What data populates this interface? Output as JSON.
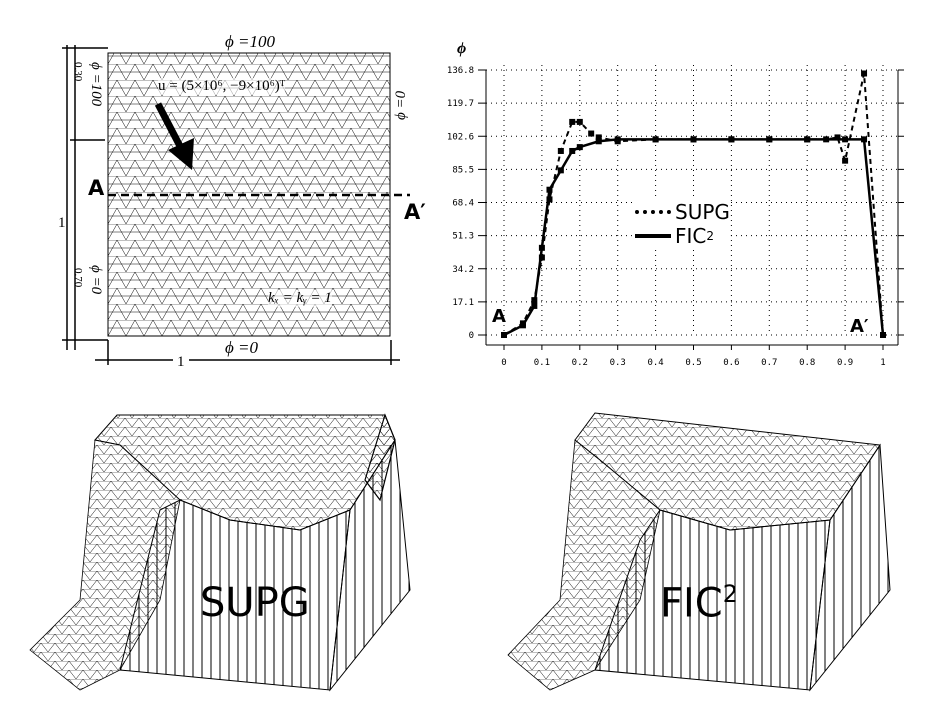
{
  "domain_panel": {
    "top_label": "ϕ =100",
    "bottom_label": "ϕ =0",
    "right_label": "ϕ =0",
    "left_upper_label": "ϕ =100",
    "left_lower_label": "ϕ =0",
    "dim_upper": "0.30",
    "dim_lower": "0.70",
    "dim_height": "1",
    "dim_width": "1",
    "velocity_label": "u = (5×10⁶, −9×10⁶)ᵀ",
    "diffusivity_label": "kₓ = kᵧ = 1",
    "section_start": "A",
    "section_end": "A′"
  },
  "chart_data": {
    "type": "line",
    "title": "",
    "xlabel": "",
    "ylabel": "ϕ",
    "xlim": [
      0,
      1
    ],
    "ylim": [
      0,
      136.8
    ],
    "x_ticks": [
      "0",
      "0.1",
      "0.2",
      "0.3",
      "0.4",
      "0.5",
      "0.6",
      "0.7",
      "0.8",
      "0.9",
      "1"
    ],
    "y_ticks": [
      "0",
      "17.1",
      "34.2",
      "51.3",
      "68.4",
      "85.5",
      "102.6",
      "119.7",
      "136.8"
    ],
    "grid": true,
    "legend_position": "center",
    "annotations": [
      "A",
      "A′"
    ],
    "series": [
      {
        "name": "SUPG",
        "style": "dotted",
        "x": [
          0,
          0.05,
          0.08,
          0.1,
          0.12,
          0.15,
          0.18,
          0.2,
          0.23,
          0.25,
          0.3,
          0.4,
          0.5,
          0.6,
          0.7,
          0.8,
          0.85,
          0.88,
          0.9,
          0.95,
          1.0
        ],
        "y": [
          0,
          6,
          18,
          40,
          70,
          95,
          110,
          110,
          104,
          102,
          100,
          101,
          101,
          101,
          101,
          101,
          101,
          102,
          90,
          135,
          0
        ]
      },
      {
        "name": "FIC²",
        "style": "solid",
        "x": [
          0,
          0.05,
          0.08,
          0.1,
          0.12,
          0.15,
          0.18,
          0.2,
          0.25,
          0.3,
          0.4,
          0.5,
          0.6,
          0.7,
          0.8,
          0.9,
          0.95,
          1.0
        ],
        "y": [
          0,
          5,
          15,
          45,
          75,
          85,
          95,
          97,
          100,
          101,
          101,
          101,
          101,
          101,
          101,
          101,
          101,
          0
        ]
      }
    ]
  },
  "chart": {
    "ylabel": "ϕ",
    "legend": [
      {
        "label": "SUPG",
        "style": "dotted"
      },
      {
        "label": "FIC",
        "sup": "2",
        "style": "solid"
      }
    ],
    "label_a": "A",
    "label_a_prime": "A′"
  },
  "surfaces": [
    {
      "label": "SUPG"
    },
    {
      "label": "FIC",
      "sup": "2"
    }
  ]
}
